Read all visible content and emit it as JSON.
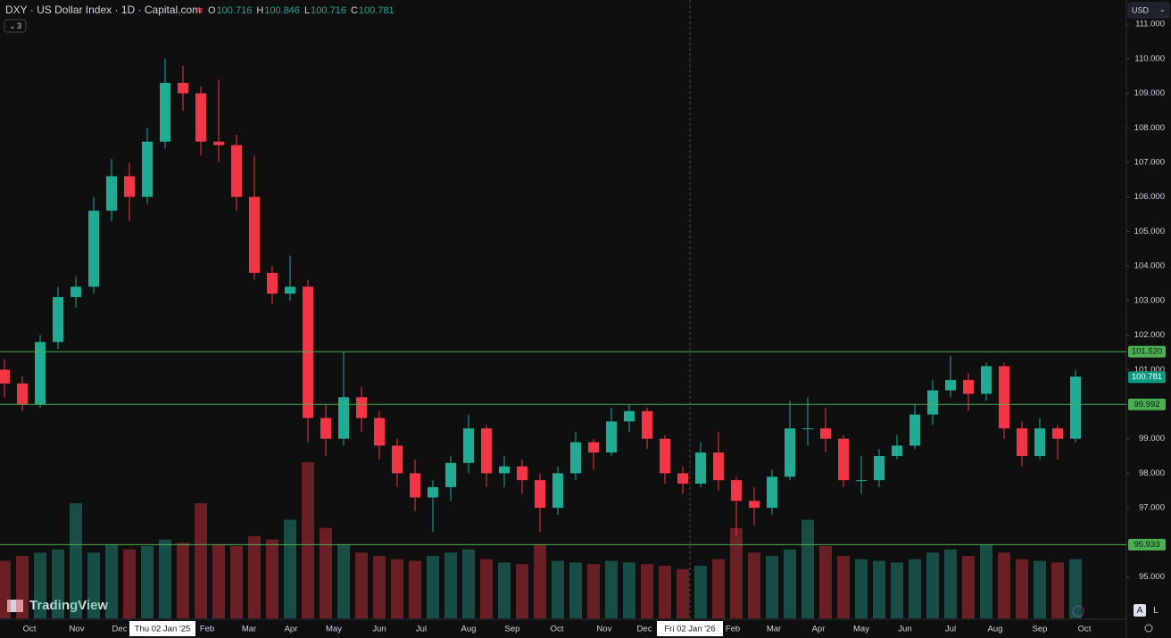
{
  "chart_data": {
    "type": "candlestick",
    "title": "DXY · US Dollar Index · 1D · Capital.com",
    "ohlc": [
      {
        "key": "O",
        "value": "100.716"
      },
      {
        "key": "H",
        "value": "100.846"
      },
      {
        "key": "L",
        "value": "100.716"
      },
      {
        "key": "C",
        "value": "100.781"
      }
    ],
    "up_color": "#22ab94",
    "down_color": "#f23645",
    "open": [
      101.0,
      100.6,
      100.0,
      101.8,
      103.1,
      103.4,
      105.6,
      106.6,
      106.0,
      107.6,
      109.3,
      109.0,
      107.6,
      107.5,
      106.0,
      103.8,
      103.2,
      103.4,
      99.6,
      99.0,
      100.2,
      99.6,
      98.8,
      98.0,
      97.3,
      97.6,
      98.3,
      99.3,
      98.0,
      98.2,
      97.8,
      97.0,
      98.0,
      98.9,
      98.6,
      99.5,
      99.8,
      99.0,
      98.0,
      97.7,
      98.6,
      97.8,
      97.2,
      97.0,
      97.9,
      99.3,
      99.3,
      99.0,
      97.8,
      97.8,
      98.5,
      98.8,
      99.7,
      100.4,
      100.7,
      100.3,
      101.1,
      99.3,
      98.5,
      99.3,
      99.0
    ],
    "high": [
      101.3,
      100.8,
      102.0,
      103.4,
      103.7,
      106.0,
      107.1,
      107.0,
      108.0,
      110.0,
      109.8,
      109.2,
      109.4,
      107.8,
      107.2,
      104.0,
      104.3,
      103.6,
      100.0,
      101.5,
      100.5,
      99.8,
      99.0,
      98.4,
      97.8,
      98.5,
      99.7,
      99.4,
      98.5,
      98.4,
      98.0,
      98.2,
      99.2,
      99.0,
      99.9,
      100.0,
      99.9,
      99.1,
      98.2,
      98.9,
      99.2,
      97.9,
      97.6,
      98.1,
      100.1,
      100.2,
      99.9,
      99.1,
      98.5,
      98.7,
      99.1,
      100.0,
      100.7,
      101.4,
      100.9,
      101.2,
      101.2,
      99.5,
      99.6,
      99.4,
      101.0
    ],
    "low": [
      100.2,
      99.8,
      99.9,
      101.6,
      102.8,
      103.2,
      105.3,
      105.3,
      105.8,
      107.4,
      108.5,
      107.2,
      107.0,
      105.6,
      103.6,
      102.9,
      103.0,
      98.9,
      98.5,
      98.8,
      99.2,
      98.4,
      97.6,
      96.9,
      96.3,
      97.2,
      98.0,
      97.6,
      97.6,
      97.4,
      96.3,
      96.8,
      97.8,
      98.1,
      98.5,
      99.2,
      98.7,
      97.7,
      97.4,
      97.6,
      97.5,
      96.2,
      96.5,
      96.8,
      97.8,
      98.8,
      98.6,
      97.6,
      97.4,
      97.6,
      98.4,
      98.7,
      99.4,
      100.2,
      99.8,
      100.1,
      99.0,
      98.2,
      98.4,
      98.4,
      98.9
    ],
    "close": [
      100.6,
      100.0,
      101.8,
      103.1,
      103.4,
      105.6,
      106.6,
      106.0,
      107.6,
      109.3,
      109.0,
      107.6,
      107.5,
      106.0,
      103.8,
      103.2,
      103.4,
      99.6,
      99.0,
      100.2,
      99.6,
      98.8,
      98.0,
      97.3,
      97.6,
      98.3,
      99.3,
      98.0,
      98.2,
      97.8,
      97.0,
      98.0,
      98.9,
      98.6,
      99.5,
      99.8,
      99.0,
      98.0,
      97.7,
      98.6,
      97.8,
      97.2,
      97.0,
      97.9,
      99.3,
      99.3,
      99.0,
      97.8,
      97.8,
      98.5,
      98.8,
      99.7,
      100.4,
      100.7,
      100.3,
      101.1,
      99.3,
      98.5,
      99.3,
      99.0,
      100.8
    ],
    "volume": [
      35,
      38,
      40,
      42,
      70,
      40,
      45,
      42,
      44,
      48,
      46,
      70,
      45,
      44,
      50,
      48,
      60,
      95,
      55,
      45,
      40,
      38,
      36,
      35,
      38,
      40,
      42,
      36,
      34,
      33,
      45,
      35,
      34,
      33,
      35,
      34,
      33,
      32,
      30,
      32,
      36,
      55,
      40,
      38,
      42,
      60,
      44,
      38,
      36,
      35,
      34,
      36,
      40,
      42,
      38,
      45,
      40,
      36,
      35,
      34,
      36
    ],
    "ylim": [
      93.8,
      111.7
    ],
    "yticks": [
      {
        "value": 95,
        "label": "95.000"
      },
      {
        "value": 97,
        "label": "97.000"
      },
      {
        "value": 98,
        "label": "98.000"
      },
      {
        "value": 99,
        "label": "99.000"
      },
      {
        "value": 101,
        "label": "101.000"
      },
      {
        "value": 102,
        "label": "102.000"
      },
      {
        "value": 103,
        "label": "103.000"
      },
      {
        "value": 104,
        "label": "104.000"
      },
      {
        "value": 105,
        "label": "105.000"
      },
      {
        "value": 106,
        "label": "106.000"
      },
      {
        "value": 107,
        "label": "107.000"
      },
      {
        "value": 108,
        "label": "108.000"
      },
      {
        "value": 109,
        "label": "109.000"
      },
      {
        "value": 110,
        "label": "110.000"
      },
      {
        "value": 111,
        "label": "111.000"
      }
    ],
    "xlim": [
      -0.25,
      62.85
    ],
    "xticks": [
      {
        "value": 1.4,
        "label": "Oct"
      },
      {
        "value": 4.05,
        "label": "Nov"
      },
      {
        "value": 6.45,
        "label": "Dec"
      },
      {
        "value": 11.35,
        "label": "Feb"
      },
      {
        "value": 13.7,
        "label": "Mar"
      },
      {
        "value": 16.05,
        "label": "Apr"
      },
      {
        "value": 18.45,
        "label": "May"
      },
      {
        "value": 21,
        "label": "Jun"
      },
      {
        "value": 23.35,
        "label": "Jul"
      },
      {
        "value": 26,
        "label": "Aug"
      },
      {
        "value": 28.45,
        "label": "Sep"
      },
      {
        "value": 30.95,
        "label": "Oct"
      },
      {
        "value": 33.6,
        "label": "Nov"
      },
      {
        "value": 35.85,
        "label": "Dec"
      },
      {
        "value": 40.8,
        "label": "Feb"
      },
      {
        "value": 43.1,
        "label": "Mar"
      },
      {
        "value": 45.6,
        "label": "Apr"
      },
      {
        "value": 48,
        "label": "May"
      },
      {
        "value": 50.45,
        "label": "Jun"
      },
      {
        "value": 53,
        "label": "Jul"
      },
      {
        "value": 55.5,
        "label": "Aug"
      },
      {
        "value": 58,
        "label": "Sep"
      },
      {
        "value": 60.5,
        "label": "Oct"
      }
    ],
    "highlighted_dates": [
      {
        "value": 8.85,
        "label": "Thu 02 Jan '25"
      },
      {
        "value": 38.4,
        "label": "Fri 02 Jan '26"
      }
    ],
    "crosshair": 38.4,
    "levels": [
      {
        "value": 101.52,
        "label": "101.520"
      },
      {
        "value": 99.992,
        "label": "99.992"
      },
      {
        "value": 95.933,
        "label": "95.933"
      }
    ],
    "level_color": "#4caf50",
    "last": {
      "value": 100.781,
      "label": "100.781"
    },
    "last_color": "#089981"
  },
  "ui": {
    "currency": "USD",
    "indicators": "3",
    "logo": "TradingView",
    "auto": "A",
    "log": "L"
  }
}
